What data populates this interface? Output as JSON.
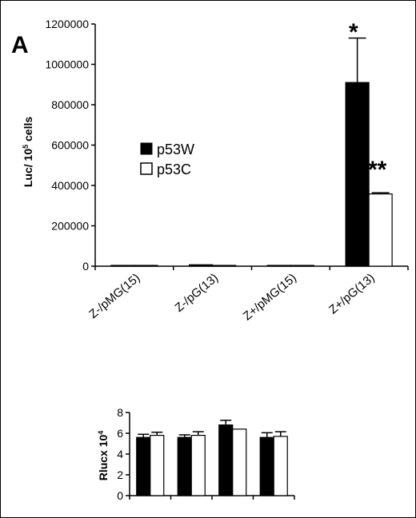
{
  "panel_label": "A",
  "chart_data": [
    {
      "type": "bar",
      "ylabel": "Luc/ 10",
      "ylabel_sup": "5",
      "ylabel_suffix": " cells",
      "categories": [
        "Z-/pMG(15)",
        "Z-/pG(13)",
        "Z+/pMG(15)",
        "Z+/pG(13)"
      ],
      "series": [
        {
          "name": "p53W",
          "color": "#000000",
          "values": [
            1500,
            7000,
            2000,
            910000
          ],
          "errors": [
            0,
            0,
            0,
            220000
          ]
        },
        {
          "name": "p53C",
          "color": "#ffffff",
          "values": [
            1000,
            2500,
            3000,
            358000
          ],
          "errors": [
            0,
            0,
            0,
            6000
          ]
        }
      ],
      "ylim": [
        0,
        1200000
      ],
      "yticks": [
        "0",
        "200000",
        "400000",
        "600000",
        "800000",
        "1000000",
        "1200000"
      ],
      "annotations": [
        "*",
        "**"
      ],
      "legend": "middle-left"
    },
    {
      "type": "bar",
      "ylabel": "Rlucx 10",
      "ylabel_sup": "4",
      "categories": [
        "",
        "",
        "",
        ""
      ],
      "series": [
        {
          "color": "#000000",
          "values": [
            5.6,
            5.6,
            6.8,
            5.6
          ],
          "errors": [
            0.3,
            0.25,
            0.45,
            0.45
          ]
        },
        {
          "color": "#ffffff",
          "values": [
            5.8,
            5.8,
            6.4,
            5.7
          ],
          "errors": [
            0.3,
            0.35,
            0.0,
            0.45
          ]
        }
      ],
      "ylim": [
        0,
        8
      ],
      "yticks": [
        "0",
        "2",
        "4",
        "6",
        "8"
      ]
    }
  ]
}
